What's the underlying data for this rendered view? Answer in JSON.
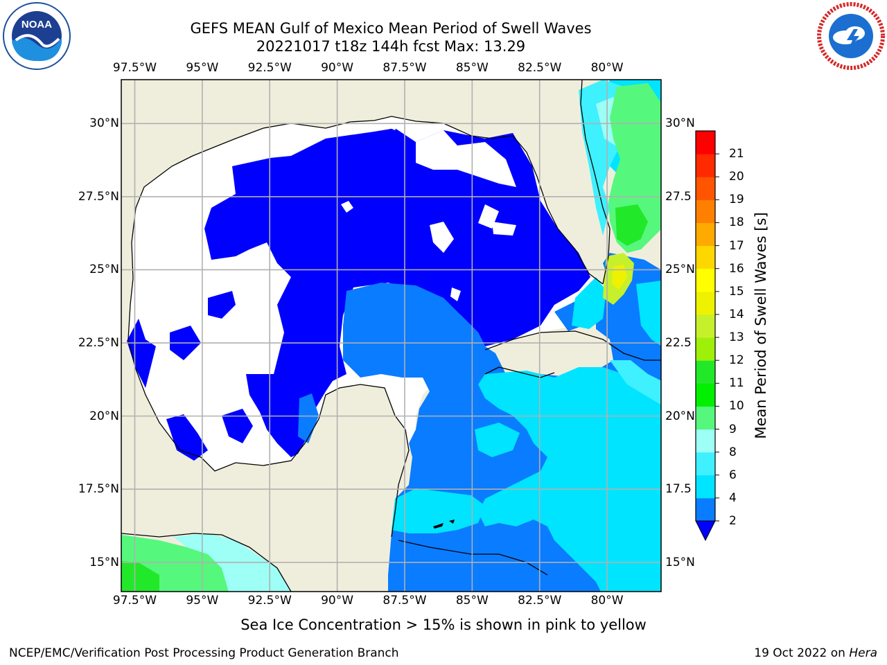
{
  "header": {
    "title_line1": "GEFS MEAN Gulf of Mexico Mean Period of Swell Waves",
    "title_line2": "20221017 t18z 144h fcst   Max: 13.29"
  },
  "logos": {
    "left": {
      "icon": "noaa-logo-icon",
      "text": "NOAA",
      "ring_text": "NATIONAL OCEANIC AND ATMOSPHERIC ADMINISTRATION · U.S. DEPARTMENT OF COMMERCE"
    },
    "right": {
      "icon": "nws-logo-icon",
      "ring_text": "NATIONAL WEATHER SERVICE"
    }
  },
  "map": {
    "lon_labels": [
      "97.5°W",
      "95°W",
      "92.5°W",
      "90°W",
      "87.5°W",
      "85°W",
      "82.5°W",
      "80°W"
    ],
    "lon_values": [
      -97.5,
      -95,
      -92.5,
      -90,
      -87.5,
      -85,
      -82.5,
      -80
    ],
    "lat_labels_left": [
      "30°N",
      "27.5°N",
      "25°N",
      "22.5°N",
      "20°N",
      "17.5°N",
      "15°N"
    ],
    "lat_labels_right": [
      "30°N",
      "27.5",
      "25°N",
      "22.5",
      "20°N",
      "17.5",
      "15°N"
    ],
    "lat_values": [
      30,
      27.5,
      25,
      22.5,
      20,
      17.5,
      15
    ],
    "extent": {
      "lon": [
        -98,
        -78
      ],
      "lat": [
        14,
        31.5
      ]
    },
    "colors": {
      "land": "#efeedc",
      "grid": "#b0b0b0",
      "white": "#ffffff",
      "band_2_4": "#0a7cff",
      "band_4_6": "#00e4ff",
      "below_2": "#0000ff",
      "band_6_8": "#3ff0ff",
      "band_8_9": "#9dfff6",
      "band_9_10": "#55f87c",
      "band_10_11": "#22e82a",
      "band_12_13": "#c7f02c",
      "band_13_14": "#eef200"
    }
  },
  "colorbar": {
    "title": "Mean Period of Swell Waves [s]",
    "ticks": [
      "2",
      "4",
      "6",
      "8",
      "9",
      "10",
      "11",
      "12",
      "13",
      "14",
      "15",
      "16",
      "17",
      "18",
      "19",
      "20",
      "21"
    ],
    "levels": [
      2,
      4,
      6,
      8,
      9,
      10,
      11,
      12,
      13,
      14,
      15,
      16,
      17,
      18,
      19,
      20,
      21
    ],
    "colors": [
      "#0a7cff",
      "#00e4ff",
      "#3ff0ff",
      "#9dfff6",
      "#55f87c",
      "#00f000",
      "#22e82a",
      "#9ef00a",
      "#c7f02c",
      "#eef200",
      "#ffff00",
      "#ffd700",
      "#ffaa00",
      "#ff8000",
      "#ff5500",
      "#ff2a00",
      "#ff0000"
    ],
    "under_color": "#0000ff"
  },
  "caption": "Sea Ice Concentration > 15% is shown in pink to yellow",
  "footer": {
    "left": "NCEP/EMC/Verification Post Processing Product Generation Branch",
    "right_prefix": "19 Oct 2022 on ",
    "right_italic": "Hera"
  }
}
